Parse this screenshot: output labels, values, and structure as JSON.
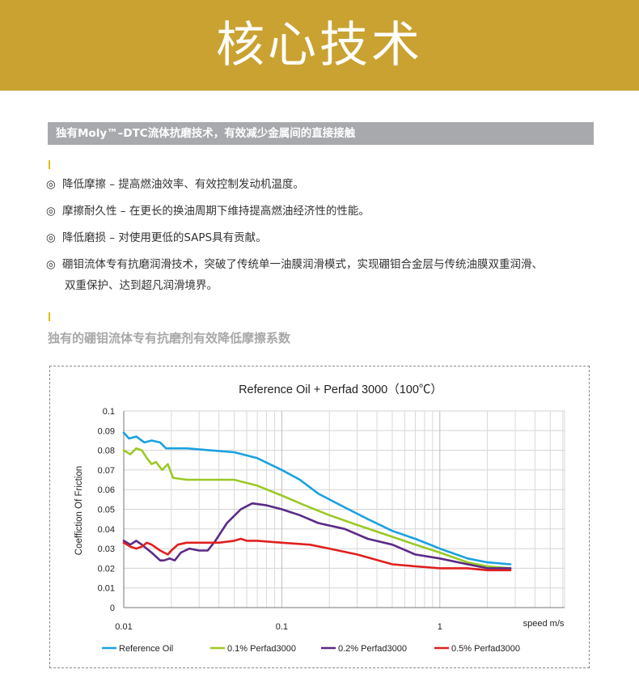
{
  "banner": {
    "title": "核心技术"
  },
  "section": {
    "title": "独有Moly™–DTC流体抗磨技术，有效减少金属间的直接接触"
  },
  "features": [
    {
      "bullet": "◎",
      "text": "降低摩擦 – 提高燃油效率、有效控制发动机温度。"
    },
    {
      "bullet": "◎",
      "text": "摩擦耐久性 – 在更长的换油周期下维持提高燃油经济性的性能。"
    },
    {
      "bullet": "◎",
      "text": "降低磨损 – 对使用更低的SAPS具有贡献。"
    },
    {
      "bullet": "◎",
      "text": "硼钼流体专有抗磨润滑技术，突破了传统单一油膜润滑模式，实现硼钼合金层与传统油膜双重润滑、",
      "text2": "双重保护、达到超凡润滑境界。"
    }
  ],
  "subheading": "独有的硼钼流体专有抗磨剂有效降低摩擦系数",
  "chart_data": {
    "type": "line",
    "title": "Reference Oil + Perfad 3000（100℃）",
    "xlabel": "speed m/s",
    "ylabel": "Coeffiction Of Friction",
    "xscale": "log",
    "xlim": [
      0.01,
      3
    ],
    "ylim": [
      0,
      0.1
    ],
    "x_ticks": [
      "0.01",
      "0.1",
      "1"
    ],
    "y_ticks": [
      "0",
      "0.01",
      "0.02",
      "0.03",
      "0.04",
      "0.05",
      "0.06",
      "0.07",
      "0.08",
      "0.09",
      "0.1"
    ],
    "grid": true,
    "legend_position": "bottom",
    "series": [
      {
        "name": "Reference Oil",
        "color": "#1ba1de",
        "points": [
          [
            0.01,
            0.089
          ],
          [
            0.0108,
            0.086
          ],
          [
            0.012,
            0.087
          ],
          [
            0.0135,
            0.084
          ],
          [
            0.015,
            0.085
          ],
          [
            0.017,
            0.084
          ],
          [
            0.0185,
            0.081
          ],
          [
            0.02,
            0.081
          ],
          [
            0.025,
            0.081
          ],
          [
            0.035,
            0.08
          ],
          [
            0.05,
            0.079
          ],
          [
            0.07,
            0.076
          ],
          [
            0.1,
            0.07
          ],
          [
            0.13,
            0.065
          ],
          [
            0.17,
            0.058
          ],
          [
            0.25,
            0.051
          ],
          [
            0.35,
            0.045
          ],
          [
            0.5,
            0.039
          ],
          [
            0.7,
            0.035
          ],
          [
            1.0,
            0.03
          ],
          [
            1.5,
            0.025
          ],
          [
            2.0,
            0.023
          ],
          [
            2.8,
            0.022
          ]
        ]
      },
      {
        "name": "0.1% Perfad3000",
        "color": "#9ac925",
        "points": [
          [
            0.01,
            0.08
          ],
          [
            0.011,
            0.078
          ],
          [
            0.012,
            0.081
          ],
          [
            0.013,
            0.08
          ],
          [
            0.014,
            0.076
          ],
          [
            0.015,
            0.073
          ],
          [
            0.016,
            0.074
          ],
          [
            0.0175,
            0.07
          ],
          [
            0.019,
            0.073
          ],
          [
            0.0205,
            0.066
          ],
          [
            0.025,
            0.065
          ],
          [
            0.035,
            0.065
          ],
          [
            0.05,
            0.065
          ],
          [
            0.07,
            0.062
          ],
          [
            0.1,
            0.057
          ],
          [
            0.15,
            0.051
          ],
          [
            0.2,
            0.047
          ],
          [
            0.3,
            0.042
          ],
          [
            0.5,
            0.036
          ],
          [
            0.7,
            0.032
          ],
          [
            1.0,
            0.028
          ],
          [
            1.5,
            0.023
          ],
          [
            2.0,
            0.021
          ],
          [
            2.8,
            0.02
          ]
        ]
      },
      {
        "name": "0.2% Perfad3000",
        "color": "#5b2a86",
        "points": [
          [
            0.01,
            0.034
          ],
          [
            0.011,
            0.032
          ],
          [
            0.012,
            0.034
          ],
          [
            0.013,
            0.032
          ],
          [
            0.015,
            0.028
          ],
          [
            0.017,
            0.024
          ],
          [
            0.018,
            0.024
          ],
          [
            0.0195,
            0.025
          ],
          [
            0.021,
            0.024
          ],
          [
            0.023,
            0.028
          ],
          [
            0.026,
            0.03
          ],
          [
            0.03,
            0.029
          ],
          [
            0.034,
            0.029
          ],
          [
            0.038,
            0.034
          ],
          [
            0.045,
            0.043
          ],
          [
            0.055,
            0.05
          ],
          [
            0.065,
            0.053
          ],
          [
            0.08,
            0.052
          ],
          [
            0.1,
            0.05
          ],
          [
            0.13,
            0.047
          ],
          [
            0.17,
            0.043
          ],
          [
            0.25,
            0.04
          ],
          [
            0.35,
            0.035
          ],
          [
            0.5,
            0.032
          ],
          [
            0.7,
            0.027
          ],
          [
            1.0,
            0.025
          ],
          [
            1.5,
            0.022
          ],
          [
            2.0,
            0.02
          ],
          [
            2.8,
            0.02
          ]
        ]
      },
      {
        "name": "0.5% Perfad3000",
        "color": "#e0201f",
        "points": [
          [
            0.01,
            0.033
          ],
          [
            0.011,
            0.031
          ],
          [
            0.012,
            0.03
          ],
          [
            0.013,
            0.031
          ],
          [
            0.014,
            0.033
          ],
          [
            0.015,
            0.032
          ],
          [
            0.017,
            0.029
          ],
          [
            0.019,
            0.027
          ],
          [
            0.02,
            0.029
          ],
          [
            0.022,
            0.032
          ],
          [
            0.025,
            0.033
          ],
          [
            0.03,
            0.033
          ],
          [
            0.04,
            0.033
          ],
          [
            0.05,
            0.034
          ],
          [
            0.055,
            0.035
          ],
          [
            0.06,
            0.034
          ],
          [
            0.07,
            0.034
          ],
          [
            0.1,
            0.033
          ],
          [
            0.15,
            0.032
          ],
          [
            0.2,
            0.03
          ],
          [
            0.3,
            0.027
          ],
          [
            0.5,
            0.022
          ],
          [
            0.7,
            0.021
          ],
          [
            1.0,
            0.02
          ],
          [
            1.5,
            0.02
          ],
          [
            2.0,
            0.019
          ],
          [
            2.8,
            0.019
          ]
        ]
      }
    ]
  }
}
